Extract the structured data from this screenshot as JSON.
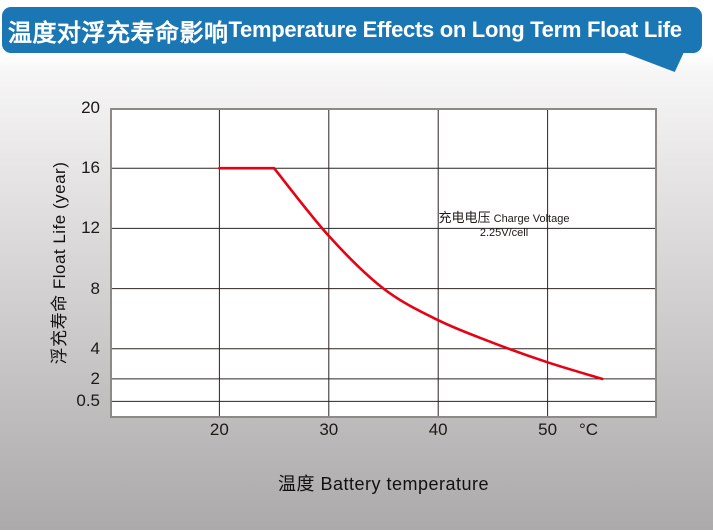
{
  "header": {
    "title_zh": "温度对浮充寿命影响",
    "title_en": "Temperature Effects on Long Term Float Life",
    "bg_color": "#1b76b4",
    "text_color": "#ffffff"
  },
  "chart_data": {
    "type": "line",
    "title": "温度对浮充寿命影响 Temperature Effects on Long Term Float Life",
    "xlabel": "温度  Battery temperature",
    "ylabel": "浮充寿命  Float Life (year)",
    "x_unit": "°C",
    "x_ticks": [
      20,
      30,
      40,
      50
    ],
    "y_ticks": [
      20,
      16,
      12,
      8,
      4,
      2,
      0.5
    ],
    "x_range": [
      10,
      60
    ],
    "y_range": [
      -0.6,
      20
    ],
    "grid": true,
    "legend_position": "none",
    "series": [
      {
        "name": "float-life-curve",
        "color": "#e60114",
        "points": [
          [
            20,
            16
          ],
          [
            25,
            16
          ],
          [
            30,
            11.5
          ],
          [
            35,
            8
          ],
          [
            40,
            5.9
          ],
          [
            45,
            4.4
          ],
          [
            50,
            3.1
          ],
          [
            55,
            2
          ]
        ]
      }
    ],
    "annotation": {
      "line1_zh": "充电电压",
      "line1_en": " Charge Voltage",
      "line2": "2.25V/cell"
    },
    "colors": {
      "plot_bg": "#ffffff",
      "frame": "#8d8987",
      "gridline": "#2b2422",
      "text": "#1d1916"
    }
  }
}
